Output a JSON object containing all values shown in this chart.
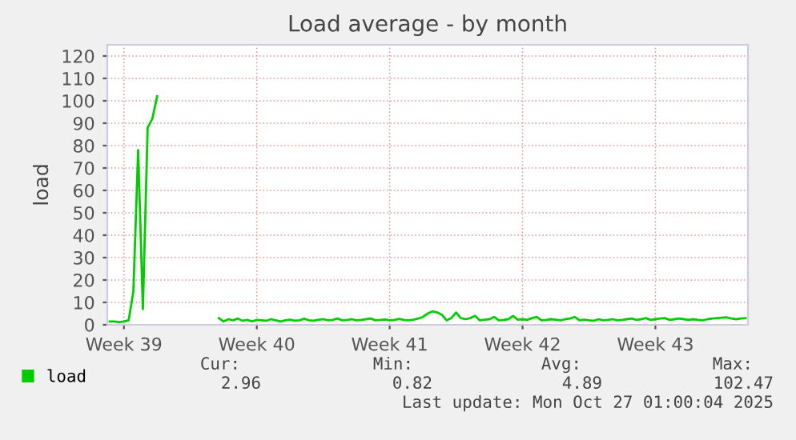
{
  "chart_data": {
    "type": "line",
    "title": "Load average - by month",
    "ylabel": "load",
    "categories": [
      null,
      null,
      null,
      "Week 39",
      null,
      null,
      null,
      null,
      null,
      null,
      null,
      null,
      null,
      null,
      null,
      null,
      null,
      null,
      null,
      null,
      null,
      null,
      null,
      null,
      null,
      null,
      null,
      null,
      null,
      null,
      null,
      "Week 40",
      null,
      null,
      null,
      null,
      null,
      null,
      null,
      null,
      null,
      null,
      null,
      null,
      null,
      null,
      null,
      null,
      null,
      null,
      null,
      null,
      null,
      null,
      null,
      null,
      null,
      null,
      null,
      "Week 41",
      null,
      null,
      null,
      null,
      null,
      null,
      null,
      null,
      null,
      null,
      null,
      null,
      null,
      null,
      null,
      null,
      null,
      null,
      null,
      null,
      null,
      null,
      null,
      null,
      null,
      null,
      null,
      "Week 42",
      null,
      null,
      null,
      null,
      null,
      null,
      null,
      null,
      null,
      null,
      null,
      null,
      null,
      null,
      null,
      null,
      null,
      null,
      null,
      null,
      null,
      null,
      null,
      null,
      null,
      null,
      null,
      "Week 43",
      null,
      null,
      null,
      null,
      null,
      null,
      null,
      null,
      null,
      null,
      null,
      null,
      null,
      null,
      null,
      null,
      null,
      null,
      null
    ],
    "series": [
      {
        "name": "load",
        "color": "#00cc00",
        "values": [
          1.5,
          1.5,
          1.2,
          1.5,
          2,
          15,
          78,
          7,
          88,
          92,
          102,
          null,
          null,
          null,
          null,
          null,
          null,
          null,
          null,
          null,
          null,
          null,
          null,
          3,
          1.5,
          2.5,
          2,
          2.8,
          1.8,
          2.2,
          1.5,
          2.2,
          2,
          1.8,
          2.5,
          2,
          1.5,
          2,
          2.3,
          1.8,
          2,
          2.7,
          2,
          1.8,
          2.3,
          2.5,
          2,
          2.2,
          2.8,
          2,
          2.2,
          2.5,
          2,
          2.2,
          2.5,
          2.8,
          2,
          2.2,
          2.4,
          2,
          2.2,
          2.6,
          2.2,
          2,
          2.3,
          2.8,
          3.5,
          5,
          6,
          5.5,
          4.5,
          2,
          3,
          5.5,
          3,
          2.5,
          3,
          4,
          2,
          2.3,
          2.5,
          3.5,
          2,
          2.2,
          2.5,
          4,
          2.3,
          2.5,
          2.2,
          3,
          3.5,
          2,
          2.2,
          2.5,
          2.3,
          2,
          2.5,
          2.8,
          3.5,
          2,
          2.3,
          2,
          1.8,
          2.5,
          2,
          2.2,
          2.5,
          2,
          2.2,
          2.5,
          2.8,
          2.2,
          2.5,
          3,
          2.2,
          2.5,
          2.8,
          3,
          2.2,
          2.5,
          2.8,
          2.5,
          2.2,
          2.5,
          2.2,
          2,
          2.5,
          2.8,
          3,
          3.2,
          3.3,
          2.8,
          2.5,
          2.8,
          2.96
        ]
      }
    ],
    "ylim": [
      0,
      125
    ],
    "yticks": [
      0,
      10,
      20,
      30,
      40,
      50,
      60,
      70,
      80,
      90,
      100,
      110,
      120
    ],
    "grid": true,
    "legend": "bottom left",
    "marker": "none",
    "line_style": "solid",
    "annotations": [
      "Cur:",
      "Min:",
      "Avg:",
      "Max:",
      "2.96",
      "0.82",
      "4.89",
      "102.47",
      "Last update: Mon Oct 27 01:00:04 2025"
    ]
  }
}
